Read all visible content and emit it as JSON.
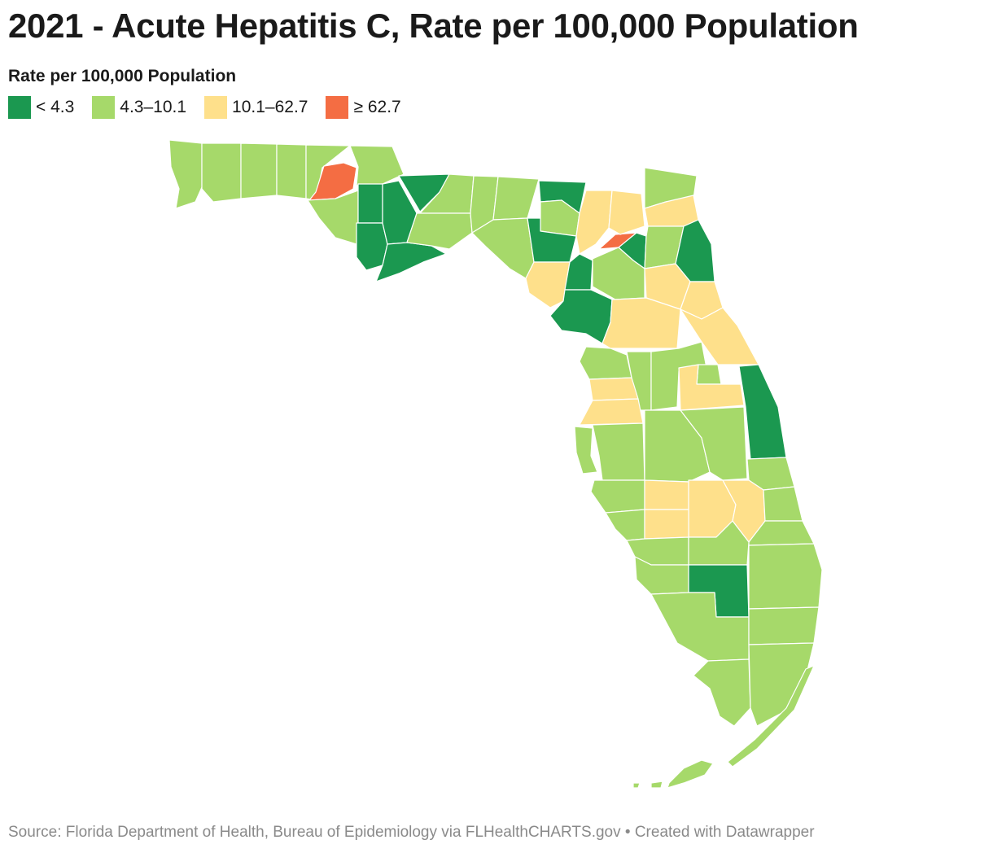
{
  "title": "2021 - Acute Hepatitis C, Rate per 100,000 Population",
  "legend": {
    "title": "Rate per 100,000 Population",
    "items": [
      {
        "label": "< 4.3",
        "color": "#1b9850"
      },
      {
        "label": "4.3–10.1",
        "color": "#a6d96a"
      },
      {
        "label": "10.1–62.7",
        "color": "#fee08b"
      },
      {
        "label": "≥ 62.7",
        "color": "#f46d43"
      }
    ]
  },
  "source": "Source: Florida Department of Health, Bureau of Epidemiology via FLHealthCHARTS.gov • Created with Datawrapper"
}
